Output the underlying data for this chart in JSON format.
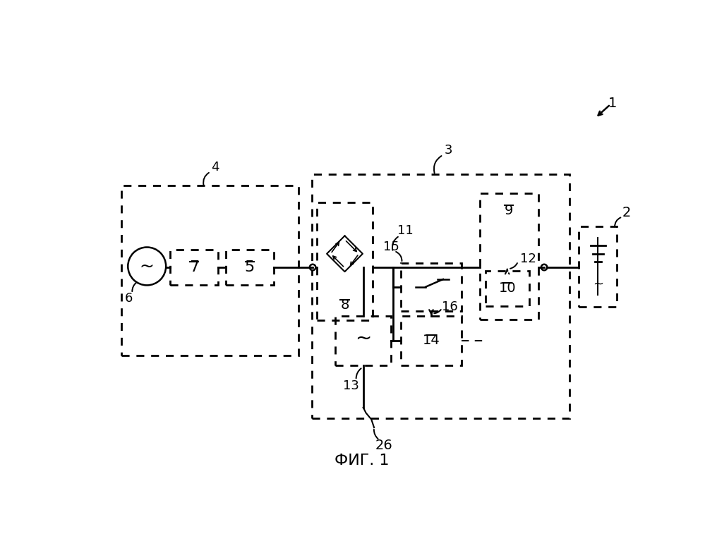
{
  "bg": "#ffffff",
  "lbl1": "1",
  "lbl2": "2",
  "lbl3": "3",
  "lbl4": "4",
  "lbl5": "5",
  "lbl6": "6",
  "lbl7": "7",
  "lbl8": "8",
  "lbl9": "9",
  "lbl10": "10",
  "lbl11": "11",
  "lbl12": "12",
  "lbl13": "13",
  "lbl14": "14",
  "lbl15": "15",
  "lbl16": "16",
  "lbl26": "26",
  "fig_label": "ФИГ. 1"
}
